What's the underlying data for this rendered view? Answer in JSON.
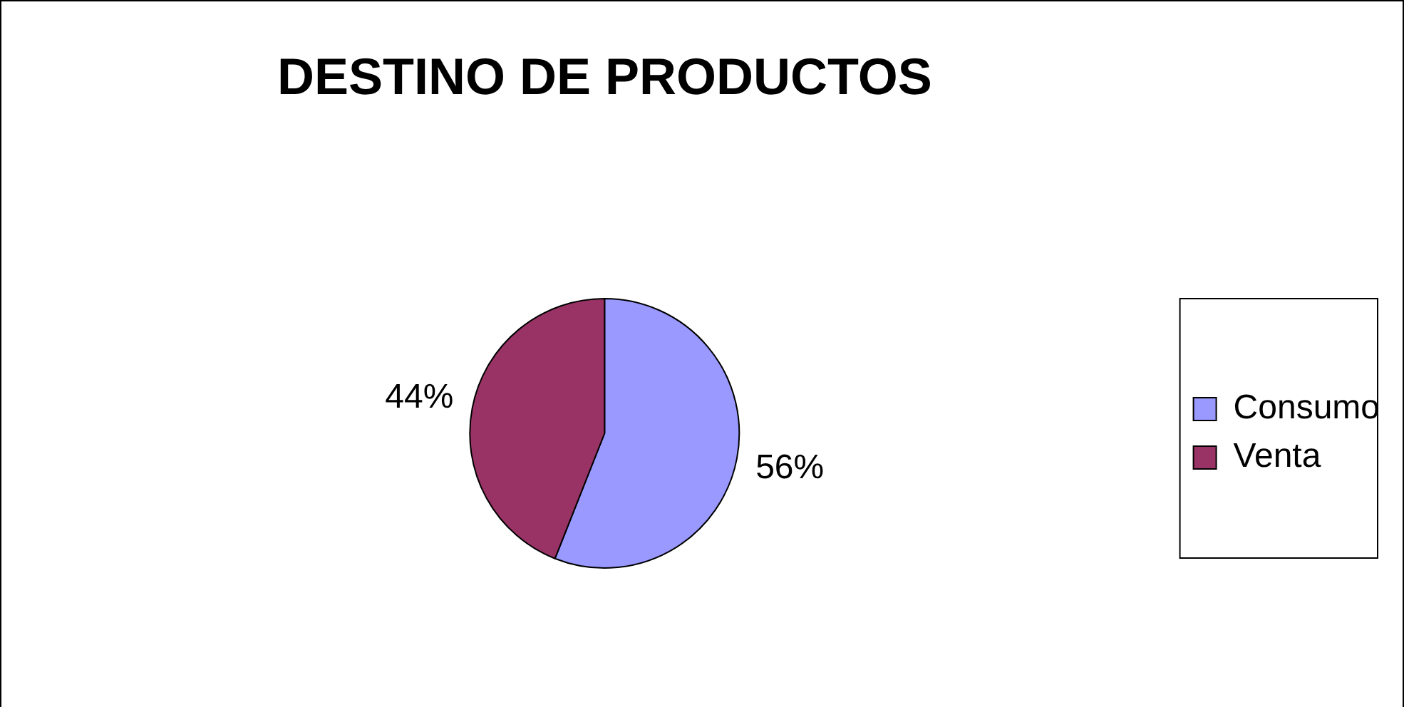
{
  "chart_data": {
    "type": "pie",
    "title": "DESTINO DE PRODUCTOS",
    "categories": [
      "Consumo",
      "Venta"
    ],
    "values": [
      56,
      44
    ],
    "colors": [
      "#9999ff",
      "#993366"
    ],
    "value_labels": [
      "56%",
      "44%"
    ],
    "legend": "right"
  }
}
